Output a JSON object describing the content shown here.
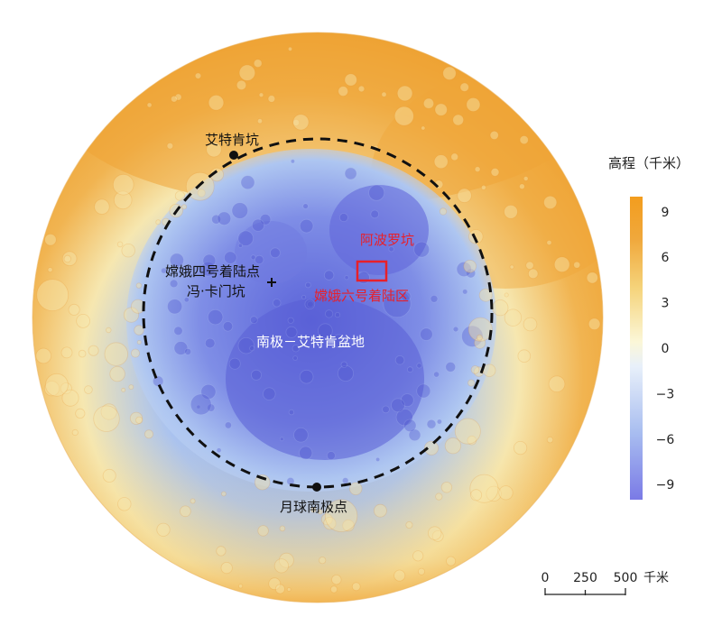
{
  "labels": {
    "aitken_crater": "艾特肯坑",
    "apollo_crater": "阿波罗坑",
    "change4_site": "嫦娥四号着陆点",
    "von_karman_crater": "冯·卡门坑",
    "change6_area": "嫦娥六号着陆区",
    "spa_basin": "南极－艾特肯盆地",
    "south_pole": "月球南极点"
  },
  "legend": {
    "title": "高程（千米）",
    "unit": "千米",
    "ticks": [
      "9",
      "6",
      "3",
      "0",
      "−3",
      "−6",
      "−9"
    ],
    "tick_values": [
      9,
      6,
      3,
      0,
      -3,
      -6,
      -9
    ],
    "range": [
      -10,
      10
    ],
    "colors": [
      "#7a7ae6",
      "#a8bdf0",
      "#e8f0fa",
      "#fbf7d8",
      "#f5d37a",
      "#f0a83c",
      "#f39d1e"
    ]
  },
  "scalebar": {
    "ticks": [
      "0",
      "250",
      "500"
    ],
    "unit": "千米"
  },
  "colors": {
    "highland": "#f0ac45",
    "basin_deep": "#5a62d8",
    "basin_mid": "#8da6ec",
    "boundary": "#111111",
    "landing_box": "#e8202a",
    "label_red": "#e8202a"
  }
}
